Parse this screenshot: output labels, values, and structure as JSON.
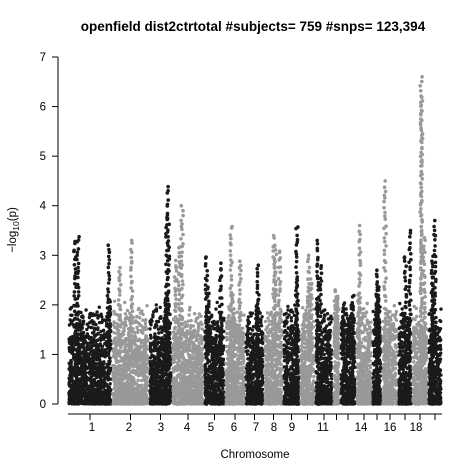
{
  "chart_data": {
    "type": "scatter",
    "subtype": "manhattan",
    "title": "openfield dist2ctrtotal #subjects= 759 #snps= 123,394",
    "xlabel": "Chromosome",
    "ylabel_base": "−log",
    "ylabel_sub": "10",
    "ylabel_tail": "(p)",
    "ylim": [
      0,
      7
    ],
    "yticks": [
      "0",
      "1",
      "2",
      "3",
      "4",
      "5",
      "6",
      "7"
    ],
    "xtick_labels": [
      "1",
      "2",
      "3",
      "4",
      "5",
      "6",
      "7",
      "8",
      "9",
      "11",
      "14",
      "16",
      "18"
    ],
    "colors": {
      "odd": "#1a1a1a",
      "even": "#999999"
    },
    "chromosomes": [
      {
        "chr": 1,
        "label": "1",
        "max": 3.4
      },
      {
        "chr": 2,
        "label": "2",
        "max": 3.3
      },
      {
        "chr": 3,
        "label": "3",
        "max": 4.4
      },
      {
        "chr": 4,
        "label": "4",
        "max": 4.0
      },
      {
        "chr": 5,
        "label": "5",
        "max": 3.0
      },
      {
        "chr": 6,
        "label": "6",
        "max": 3.6
      },
      {
        "chr": 7,
        "label": "7",
        "max": 2.8
      },
      {
        "chr": 8,
        "label": "8",
        "max": 3.4
      },
      {
        "chr": 9,
        "label": "9",
        "max": 3.6
      },
      {
        "chr": 10,
        "label": "",
        "max": 3.0
      },
      {
        "chr": 11,
        "label": "11",
        "max": 3.3
      },
      {
        "chr": 12,
        "label": "",
        "max": 2.3
      },
      {
        "chr": 13,
        "label": "",
        "max": 2.2
      },
      {
        "chr": 14,
        "label": "14",
        "max": 3.6
      },
      {
        "chr": 15,
        "label": "",
        "max": 2.7
      },
      {
        "chr": 16,
        "label": "16",
        "max": 4.5
      },
      {
        "chr": 17,
        "label": "",
        "max": 3.5
      },
      {
        "chr": 18,
        "label": "18",
        "max": 6.6
      },
      {
        "chr": 19,
        "label": "",
        "max": 3.7
      }
    ]
  }
}
